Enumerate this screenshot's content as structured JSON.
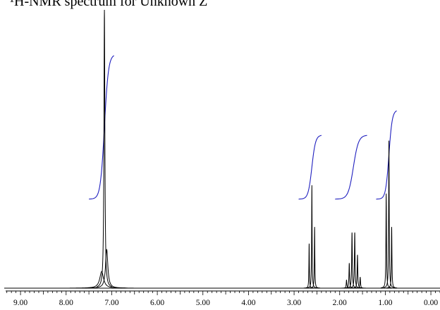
{
  "title": "¹H-NMR spectrum for Unknown Z",
  "colors": {
    "spectrum": "#000000",
    "integral": "#1f1fbf",
    "axis": "#000000"
  },
  "chart_data": {
    "type": "line",
    "title": "¹H-NMR spectrum for Unknown Z",
    "xlabel": "",
    "ylabel": "",
    "x_axis": {
      "min": -0.2,
      "max": 9.45,
      "reversed": true,
      "unit": "ppm"
    },
    "y_axis": {
      "min": 0,
      "max": 1.0
    },
    "x_tick_labels": [
      "9.00",
      "8.00",
      "7.00",
      "6.00",
      "5.00",
      "4.00",
      "3.00",
      "2.00",
      "1.00",
      "0.00"
    ],
    "x_tick_values": [
      9.0,
      8.0,
      7.0,
      6.0,
      5.0,
      4.0,
      3.0,
      2.0,
      1.0,
      0.0
    ],
    "grid": false,
    "series": [
      {
        "kind": "spectrum",
        "peaks": [
          {
            "ppm": 7.16,
            "height": 1.0,
            "width": 0.012
          },
          {
            "ppm": 7.11,
            "height": 0.14,
            "width": 0.03
          },
          {
            "ppm": 7.22,
            "height": 0.06,
            "width": 0.05
          },
          {
            "ppm": 2.67,
            "height": 0.16,
            "width": 0.006
          },
          {
            "ppm": 2.61,
            "height": 0.37,
            "width": 0.006
          },
          {
            "ppm": 2.55,
            "height": 0.22,
            "width": 0.006
          },
          {
            "ppm": 1.85,
            "height": 0.03,
            "width": 0.008
          },
          {
            "ppm": 1.79,
            "height": 0.09,
            "width": 0.008
          },
          {
            "ppm": 1.73,
            "height": 0.2,
            "width": 0.008
          },
          {
            "ppm": 1.67,
            "height": 0.2,
            "width": 0.008
          },
          {
            "ppm": 1.61,
            "height": 0.12,
            "width": 0.008
          },
          {
            "ppm": 1.55,
            "height": 0.04,
            "width": 0.008
          },
          {
            "ppm": 0.98,
            "height": 0.34,
            "width": 0.007
          },
          {
            "ppm": 0.92,
            "height": 0.53,
            "width": 0.007
          },
          {
            "ppm": 0.86,
            "height": 0.22,
            "width": 0.007
          }
        ]
      },
      {
        "kind": "integral",
        "curves": [
          {
            "from_ppm": 7.5,
            "to_ppm": 6.95,
            "center_ppm": 7.16,
            "start": 0.32,
            "end": 0.84
          },
          {
            "from_ppm": 2.9,
            "to_ppm": 2.4,
            "center_ppm": 2.61,
            "start": 0.32,
            "end": 0.55
          },
          {
            "from_ppm": 2.1,
            "to_ppm": 1.4,
            "center_ppm": 1.7,
            "start": 0.32,
            "end": 0.55
          },
          {
            "from_ppm": 1.2,
            "to_ppm": 0.75,
            "center_ppm": 0.92,
            "start": 0.32,
            "end": 0.64
          }
        ]
      }
    ]
  }
}
